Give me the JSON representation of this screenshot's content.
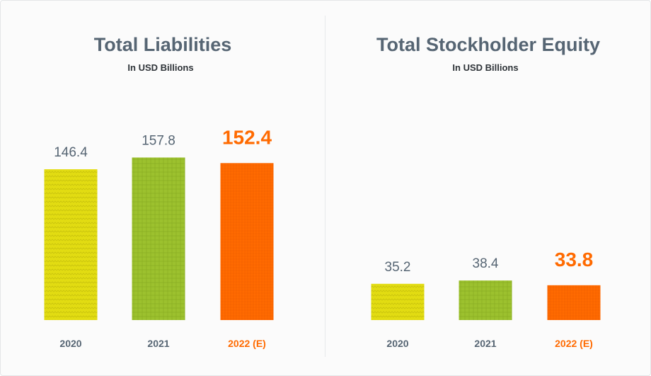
{
  "chart_data": [
    {
      "type": "bar",
      "title": "Total Liabilities",
      "subtitle": "In USD Billions",
      "categories": [
        "2020",
        "2021",
        "2022 (E)"
      ],
      "values": [
        146.4,
        157.8,
        152.4
      ],
      "value_labels": [
        "146.4",
        "157.8",
        "152.4"
      ],
      "highlight_index": 2,
      "colors": [
        "#e2dc12",
        "#9cc12e",
        "#ff6a00"
      ],
      "ylim": [
        0,
        165
      ],
      "grid": false,
      "legend": "none"
    },
    {
      "type": "bar",
      "title": "Total Stockholder Equity",
      "subtitle": "In USD Billions",
      "categories": [
        "2020",
        "2021",
        "2022 (E)"
      ],
      "values": [
        35.2,
        38.4,
        33.8
      ],
      "value_labels": [
        "35.2",
        "38.4",
        "33.8"
      ],
      "highlight_index": 2,
      "colors": [
        "#e2dc12",
        "#9cc12e",
        "#ff6a00"
      ],
      "ylim": [
        0,
        165
      ],
      "grid": false,
      "legend": "none"
    }
  ]
}
